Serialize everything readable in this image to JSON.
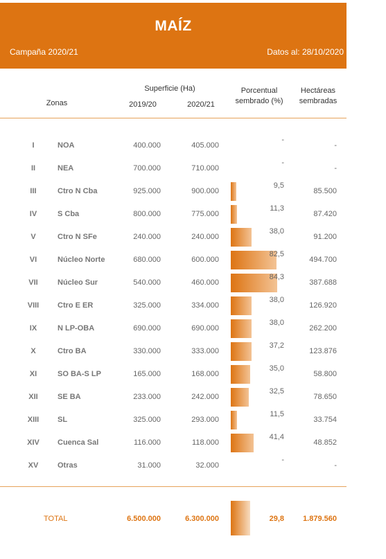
{
  "header": {
    "title": "MAÍZ",
    "campaign": "Campaña 2020/21",
    "date": "Datos al: 28/10/2020"
  },
  "columns": {
    "zonas": "Zonas",
    "superficie": "Superficie (Ha)",
    "year1": "2019/20",
    "year2": "2020/21",
    "porcentual_line1": "Porcentual",
    "porcentual_line2": "sembrado (%)",
    "hectareas_line1": "Hectáreas",
    "hectareas_line2": "sembradas"
  },
  "accent_color": "#dd7412",
  "rows": [
    {
      "num": "I",
      "zone": "NOA",
      "s1": "400.000",
      "s2": "405.000",
      "pct": "-",
      "pct_value": 0,
      "ha": "-"
    },
    {
      "num": "II",
      "zone": "NEA",
      "s1": "700.000",
      "s2": "710.000",
      "pct": "-",
      "pct_value": 0,
      "ha": "-"
    },
    {
      "num": "III",
      "zone": "Ctro N Cba",
      "s1": "925.000",
      "s2": "900.000",
      "pct": "9,5",
      "pct_value": 9.5,
      "ha": "85.500"
    },
    {
      "num": "IV",
      "zone": "S Cba",
      "s1": "800.000",
      "s2": "775.000",
      "pct": "11,3",
      "pct_value": 11.3,
      "ha": "87.420"
    },
    {
      "num": "V",
      "zone": "Ctro N SFe",
      "s1": "240.000",
      "s2": "240.000",
      "pct": "38,0",
      "pct_value": 38.0,
      "ha": "91.200"
    },
    {
      "num": "VI",
      "zone": "Núcleo Norte",
      "s1": "680.000",
      "s2": "600.000",
      "pct": "82,5",
      "pct_value": 82.5,
      "ha": "494.700"
    },
    {
      "num": "VII",
      "zone": "Núcleo Sur",
      "s1": "540.000",
      "s2": "460.000",
      "pct": "84,3",
      "pct_value": 84.3,
      "ha": "387.688"
    },
    {
      "num": "VIII",
      "zone": "Ctro E ER",
      "s1": "325.000",
      "s2": "334.000",
      "pct": "38,0",
      "pct_value": 38.0,
      "ha": "126.920"
    },
    {
      "num": "IX",
      "zone": "N LP-OBA",
      "s1": "690.000",
      "s2": "690.000",
      "pct": "38,0",
      "pct_value": 38.0,
      "ha": "262.200"
    },
    {
      "num": "X",
      "zone": "Ctro BA",
      "s1": "330.000",
      "s2": "333.000",
      "pct": "37,2",
      "pct_value": 37.2,
      "ha": "123.876"
    },
    {
      "num": "XI",
      "zone": "SO BA-S LP",
      "s1": "165.000",
      "s2": "168.000",
      "pct": "35,0",
      "pct_value": 35.0,
      "ha": "58.800"
    },
    {
      "num": "XII",
      "zone": "SE BA",
      "s1": "233.000",
      "s2": "242.000",
      "pct": "32,5",
      "pct_value": 32.5,
      "ha": "78.650"
    },
    {
      "num": "XIII",
      "zone": "SL",
      "s1": "325.000",
      "s2": "293.000",
      "pct": "11,5",
      "pct_value": 11.5,
      "ha": "33.754"
    },
    {
      "num": "XIV",
      "zone": "Cuenca Sal",
      "s1": "116.000",
      "s2": "118.000",
      "pct": "41,4",
      "pct_value": 41.4,
      "ha": "48.852"
    },
    {
      "num": "XV",
      "zone": "Otras",
      "s1": "31.000",
      "s2": "32.000",
      "pct": "-",
      "pct_value": 0,
      "ha": "-"
    }
  ],
  "total": {
    "label": "TOTAL",
    "s1": "6.500.000",
    "s2": "6.300.000",
    "pct": "29,8",
    "pct_value": 29.8,
    "ha": "1.879.560"
  }
}
